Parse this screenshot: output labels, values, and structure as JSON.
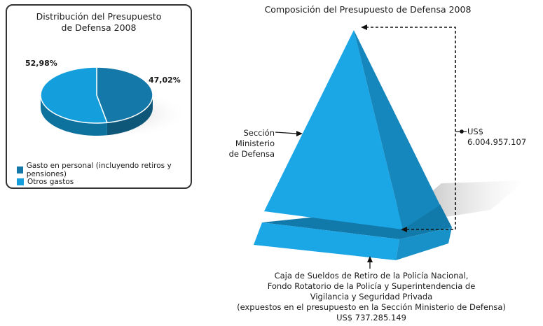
{
  "pie_panel": {
    "title_line1": "Distribución del Presupuesto",
    "title_line2": "de Defensa 2008",
    "slices": [
      {
        "label": "Gasto en personal (incluyendo retiros y pensiones)",
        "value": 47.02,
        "value_label": "47,02%",
        "color": "#1479a8"
      },
      {
        "label": "Otros gastos",
        "value": 52.98,
        "value_label": "52,98%",
        "color": "#149fdc"
      }
    ]
  },
  "pyramid": {
    "title": "Composición del Presupuesto de Defensa 2008",
    "top_label_line1": "Sección Ministerio",
    "top_label_line2": "de Defensa",
    "top_amount": "US$ 6.004.957.107",
    "bottom_lines": [
      "Caja de Sueldos de Retiro de la Policía Nacional,",
      "Fondo Rotatorio de la Policía y Superintendencia de",
      "Vigilancia y Seguridad Privada",
      "(expuestos en el presupuesto en la Sección Ministerio de Defensa)",
      "US$ 737.285.149"
    ],
    "colors": {
      "light": "#1ba6e6",
      "mid": "#1890c8",
      "dark": "#127aab"
    }
  }
}
